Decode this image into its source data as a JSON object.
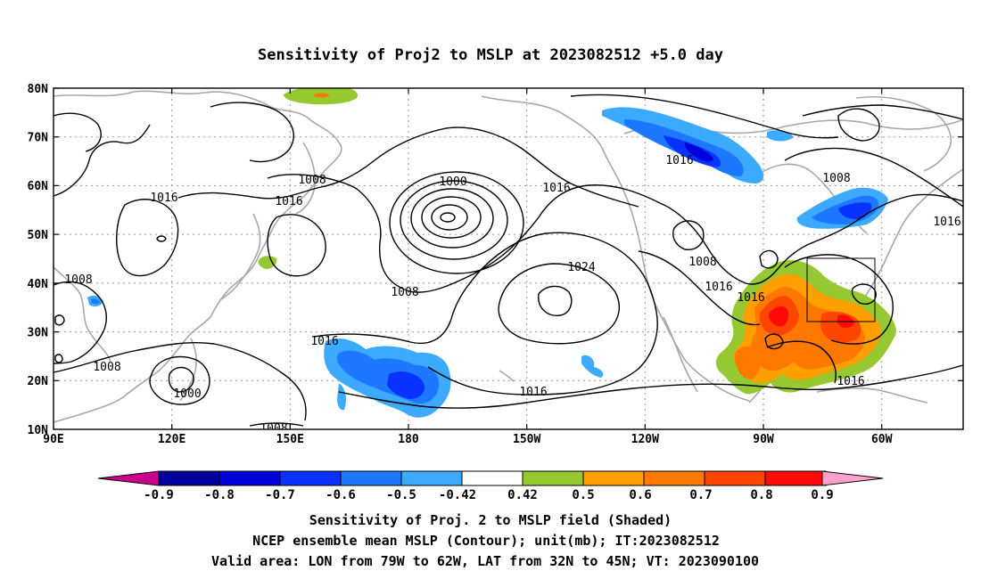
{
  "title": "Sensitivity of Proj2 to MSLP at 2023082512 +5.0 day",
  "lat_ticks": [
    "80N",
    "70N",
    "60N",
    "50N",
    "40N",
    "30N",
    "20N",
    "10N"
  ],
  "lon_ticks": [
    "90E",
    "120E",
    "150E",
    "180",
    "150W",
    "120W",
    "90W",
    "60W"
  ],
  "contour_labels": [
    "1016",
    "1008",
    "1000",
    "1024",
    "1008",
    "1016",
    "1016",
    "1008",
    "1008",
    "1016",
    "1016",
    "1016",
    "1008",
    "1016",
    "1016",
    "1008",
    "1000",
    "1008",
    "1016",
    "1016"
  ],
  "colorbar": {
    "labels": [
      "-0.9",
      "-0.8",
      "-0.7",
      "-0.6",
      "-0.5",
      "-0.42",
      "0.42",
      "0.5",
      "0.6",
      "0.7",
      "0.8",
      "0.9"
    ],
    "colors": [
      "#c8008c",
      "#0000a0",
      "#0000dc",
      "#0a32ff",
      "#1e78ff",
      "#3caaff",
      "#ffffff",
      "#96c832",
      "#ffa000",
      "#ff7800",
      "#ff4600",
      "#ff0a0a",
      "#ffa0c8"
    ]
  },
  "caption": [
    "Sensitivity of Proj. 2 to MSLP field (Shaded)",
    "NCEP ensemble mean MSLP (Contour); unit(mb); IT:2023082512",
    "Valid area: LON from 79W to 62W, LAT from 32N to 45N; VT: 2023090100"
  ]
}
